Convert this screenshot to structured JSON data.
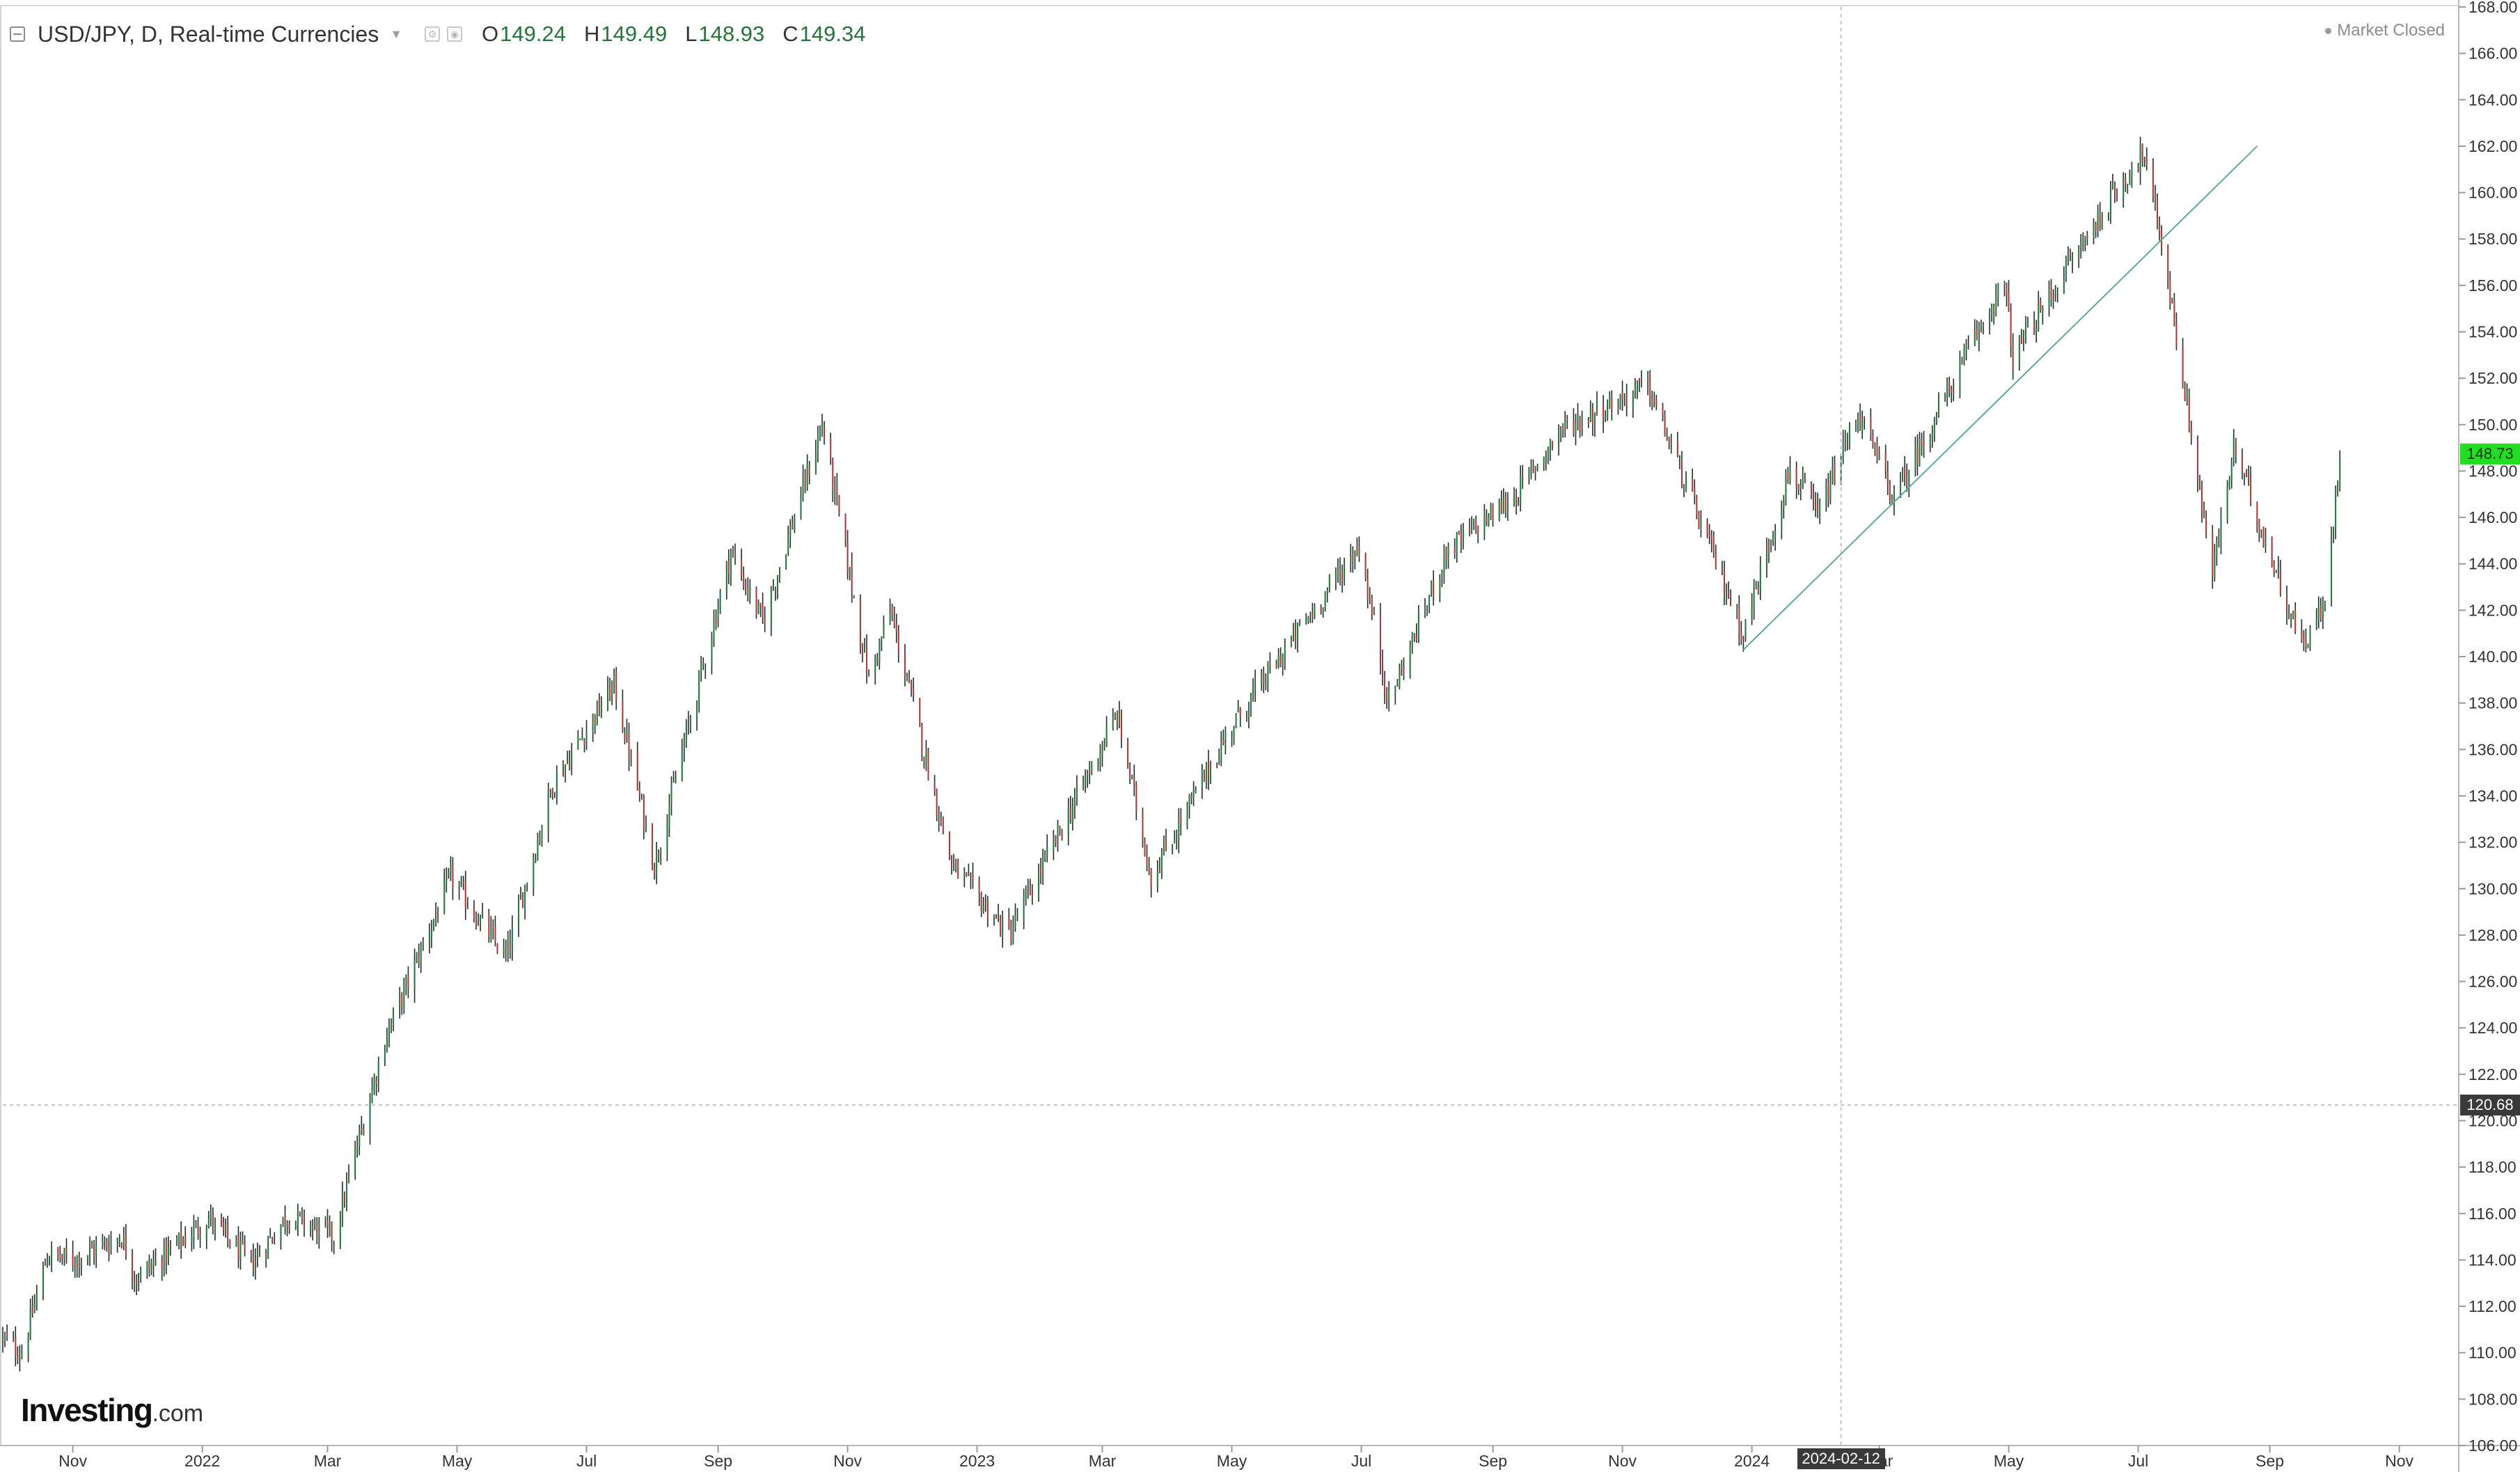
{
  "legend": {
    "symbol": "USD/JPY, D, Real-time Currencies",
    "icons": [
      "collapse-icon",
      "chevron-down-icon",
      "settings-icon",
      "camera-icon"
    ],
    "ohlc": {
      "o_label": "O",
      "o_value": "149.24",
      "h_label": "H",
      "h_value": "149.49",
      "l_label": "L",
      "l_value": "148.93",
      "c_label": "C",
      "c_value": "149.34"
    }
  },
  "status": {
    "text": "Market Closed"
  },
  "brand": {
    "name": "Investing",
    "suffix": ".com"
  },
  "crosshair": {
    "price_label": "120.68",
    "price_value": 120.68,
    "date_label": "2024-02-12",
    "date_value": "2024-02-12"
  },
  "last_price": {
    "label": "148.73",
    "value": 148.73
  },
  "colors": {
    "up": "#26743b",
    "down": "#a33a3a",
    "wick": "#1f2f25",
    "trendline": "#5fa79a",
    "grid": "#e6e6e6",
    "axis_text": "#333333",
    "accent_last": "#22dd22"
  },
  "chart_data": {
    "type": "candlestick",
    "title": "USD/JPY, D, Real-time Currencies",
    "xlabel": "",
    "ylabel": "",
    "x_range": [
      "2021-09-29",
      "2024-11-29"
    ],
    "ylim": [
      106,
      168
    ],
    "y_ticks": [
      "106.00",
      "108.00",
      "110.00",
      "112.00",
      "114.00",
      "116.00",
      "118.00",
      "120.00",
      "122.00",
      "124.00",
      "126.00",
      "128.00",
      "130.00",
      "132.00",
      "134.00",
      "136.00",
      "138.00",
      "140.00",
      "142.00",
      "144.00",
      "146.00",
      "148.00",
      "150.00",
      "152.00",
      "154.00",
      "156.00",
      "158.00",
      "160.00",
      "162.00",
      "164.00",
      "166.00",
      "168.00"
    ],
    "x_ticks": [
      {
        "label": "Nov",
        "date": "2021-11-01"
      },
      {
        "label": "2022",
        "date": "2022-01-01"
      },
      {
        "label": "Mar",
        "date": "2022-03-01"
      },
      {
        "label": "May",
        "date": "2022-05-01"
      },
      {
        "label": "Jul",
        "date": "2022-07-01"
      },
      {
        "label": "Sep",
        "date": "2022-09-01"
      },
      {
        "label": "Nov",
        "date": "2022-11-01"
      },
      {
        "label": "2023",
        "date": "2023-01-01"
      },
      {
        "label": "Mar",
        "date": "2023-03-01"
      },
      {
        "label": "May",
        "date": "2023-05-01"
      },
      {
        "label": "Jul",
        "date": "2023-07-01"
      },
      {
        "label": "Sep",
        "date": "2023-09-01"
      },
      {
        "label": "Nov",
        "date": "2023-11-01"
      },
      {
        "label": "2024",
        "date": "2024-01-01"
      },
      {
        "label": "Mar",
        "date": "2024-03-01"
      },
      {
        "label": "May",
        "date": "2024-05-01"
      },
      {
        "label": "Jul",
        "date": "2024-07-01"
      },
      {
        "label": "Sep",
        "date": "2024-09-01"
      },
      {
        "label": "Nov",
        "date": "2024-11-01"
      }
    ],
    "anchors": [
      [
        "2021-09-29",
        110.6
      ],
      [
        "2021-10-08",
        110.0
      ],
      [
        "2021-10-20",
        114.2
      ],
      [
        "2021-11-01",
        114.0
      ],
      [
        "2021-11-24",
        115.0
      ],
      [
        "2021-12-01",
        113.2
      ],
      [
        "2022-01-04",
        115.8
      ],
      [
        "2022-01-24",
        113.8
      ],
      [
        "2022-02-10",
        115.9
      ],
      [
        "2022-03-04",
        115.0
      ],
      [
        "2022-03-28",
        123.5
      ],
      [
        "2022-04-28",
        130.5
      ],
      [
        "2022-05-24",
        127.0
      ],
      [
        "2022-06-15",
        134.5
      ],
      [
        "2022-07-14",
        138.8
      ],
      [
        "2022-08-02",
        131.0
      ],
      [
        "2022-09-07",
        144.5
      ],
      [
        "2022-09-22",
        141.5
      ],
      [
        "2022-10-20",
        150.0
      ],
      [
        "2022-11-11",
        139.0
      ],
      [
        "2022-11-21",
        142.0
      ],
      [
        "2022-12-20",
        131.0
      ],
      [
        "2023-01-16",
        128.0
      ],
      [
        "2023-03-08",
        137.5
      ],
      [
        "2023-03-24",
        130.5
      ],
      [
        "2023-05-01",
        137.0
      ],
      [
        "2023-06-30",
        144.8
      ],
      [
        "2023-07-14",
        138.0
      ],
      [
        "2023-08-10",
        144.5
      ],
      [
        "2023-09-12",
        147.0
      ],
      [
        "2023-10-03",
        149.8
      ],
      [
        "2023-11-13",
        151.7
      ],
      [
        "2023-11-24",
        149.0
      ],
      [
        "2023-12-28",
        141.0
      ],
      [
        "2024-01-19",
        148.1
      ],
      [
        "2024-02-01",
        146.0
      ],
      [
        "2024-02-20",
        150.5
      ],
      [
        "2024-03-08",
        146.8
      ],
      [
        "2024-04-25",
        155.5
      ],
      [
        "2024-04-29",
        156.0
      ],
      [
        "2024-05-03",
        152.9
      ],
      [
        "2024-05-30",
        157.0
      ],
      [
        "2024-06-26",
        160.8
      ],
      [
        "2024-07-03",
        161.7
      ],
      [
        "2024-07-12",
        158.0
      ],
      [
        "2024-08-05",
        143.5
      ],
      [
        "2024-08-15",
        149.0
      ],
      [
        "2024-09-16",
        140.5
      ],
      [
        "2024-09-27",
        142.2
      ],
      [
        "2024-10-04",
        148.7
      ]
    ],
    "candle_interval_days": 1,
    "annotations": [
      {
        "type": "trendline",
        "from": [
          "2023-12-28",
          140.3
        ],
        "to": [
          "2024-08-26",
          162.0
        ]
      }
    ],
    "grid": false
  }
}
